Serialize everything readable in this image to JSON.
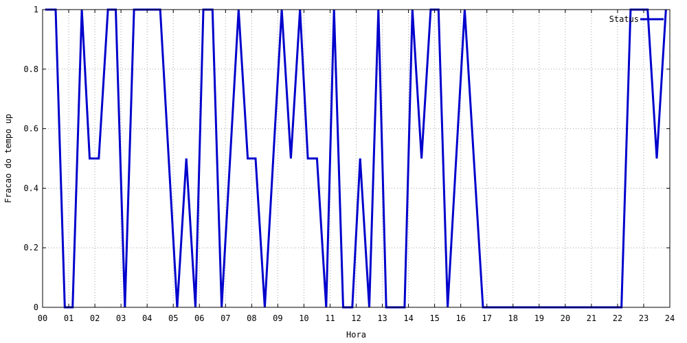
{
  "chart_data": {
    "type": "line",
    "title": "",
    "xlabel": "Hora",
    "ylabel": "Fracao do tempo up",
    "xlim": [
      0,
      24
    ],
    "ylim": [
      0,
      1
    ],
    "x_ticks": [
      "00",
      "01",
      "02",
      "03",
      "04",
      "05",
      "06",
      "07",
      "08",
      "09",
      "10",
      "11",
      "12",
      "13",
      "14",
      "15",
      "16",
      "17",
      "18",
      "19",
      "20",
      "21",
      "22",
      "23",
      "24"
    ],
    "y_ticks": [
      "0",
      "0.2",
      "0.4",
      "0.6",
      "0.8",
      "1"
    ],
    "grid": true,
    "legend_position": "top-right",
    "series": [
      {
        "name": "Status",
        "color": "#0000cc",
        "points": [
          [
            0.1,
            1
          ],
          [
            0.5,
            1
          ],
          [
            0.85,
            0
          ],
          [
            1.15,
            0
          ],
          [
            1.5,
            1
          ],
          [
            1.8,
            0.5
          ],
          [
            2.15,
            0.5
          ],
          [
            2.5,
            1
          ],
          [
            2.8,
            1
          ],
          [
            3.15,
            0
          ],
          [
            3.5,
            1
          ],
          [
            4.5,
            1
          ],
          [
            5.15,
            0
          ],
          [
            5.5,
            0.5
          ],
          [
            5.85,
            0
          ],
          [
            6.15,
            1
          ],
          [
            6.5,
            1
          ],
          [
            6.85,
            0
          ],
          [
            7.5,
            1
          ],
          [
            7.85,
            0.5
          ],
          [
            8.15,
            0.5
          ],
          [
            8.5,
            0
          ],
          [
            9.15,
            1
          ],
          [
            9.5,
            0.5
          ],
          [
            9.85,
            1
          ],
          [
            10.15,
            0.5
          ],
          [
            10.5,
            0.5
          ],
          [
            10.85,
            0
          ],
          [
            11.15,
            1
          ],
          [
            11.5,
            0
          ],
          [
            11.85,
            0
          ],
          [
            12.15,
            0.5
          ],
          [
            12.5,
            0
          ],
          [
            12.85,
            1
          ],
          [
            13.15,
            0
          ],
          [
            13.85,
            0
          ],
          [
            14.15,
            1
          ],
          [
            14.5,
            0.5
          ],
          [
            14.85,
            1
          ],
          [
            15.15,
            1
          ],
          [
            15.5,
            0
          ],
          [
            16.15,
            1
          ],
          [
            16.85,
            0
          ],
          [
            22.15,
            0
          ],
          [
            22.5,
            1
          ],
          [
            23.15,
            1
          ],
          [
            23.5,
            0.5
          ],
          [
            23.85,
            1
          ]
        ]
      }
    ]
  }
}
